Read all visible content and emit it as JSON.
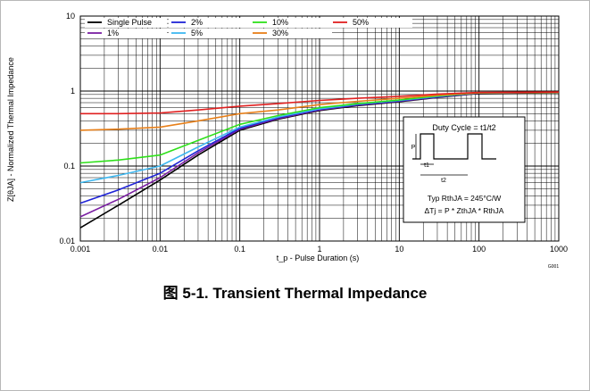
{
  "figure_caption": "图 5-1. Transient Thermal Impedance",
  "figure_id": "G001",
  "chart_data": {
    "type": "line",
    "title": "",
    "xlabel": "t_p - Pulse Duration (s)",
    "ylabel": "Z[θJA] - Normalized Thermal Impedance",
    "x_scale": "log",
    "y_scale": "log",
    "xlim": [
      0.001,
      1000
    ],
    "ylim": [
      0.01,
      10
    ],
    "x_ticks": [
      "0.001",
      "0.01",
      "0.1",
      "1",
      "10",
      "100",
      "1000"
    ],
    "y_ticks": [
      "0.01",
      "0.1",
      "1",
      "10"
    ],
    "grid": true,
    "legend_position": "top",
    "series": [
      {
        "name": "Single Pulse",
        "color": "#000000",
        "x": [
          0.001,
          0.003,
          0.01,
          0.03,
          0.1,
          0.3,
          1,
          3,
          10,
          30,
          100,
          1000
        ],
        "y": [
          0.015,
          0.03,
          0.065,
          0.14,
          0.3,
          0.42,
          0.55,
          0.64,
          0.72,
          0.82,
          0.93,
          0.95
        ]
      },
      {
        "name": "1%",
        "color": "#7a1fa2",
        "x": [
          0.001,
          0.003,
          0.01,
          0.03,
          0.1,
          0.3,
          1,
          3,
          10,
          30,
          100,
          1000
        ],
        "y": [
          0.021,
          0.036,
          0.07,
          0.15,
          0.31,
          0.43,
          0.56,
          0.65,
          0.73,
          0.83,
          0.94,
          0.96
        ]
      },
      {
        "name": "2%",
        "color": "#1f24d6",
        "x": [
          0.001,
          0.003,
          0.01,
          0.03,
          0.1,
          0.3,
          1,
          3,
          10,
          30,
          100,
          1000
        ],
        "y": [
          0.032,
          0.048,
          0.08,
          0.16,
          0.32,
          0.44,
          0.57,
          0.66,
          0.74,
          0.84,
          0.95,
          0.96
        ]
      },
      {
        "name": "5%",
        "color": "#3fb8f0",
        "x": [
          0.001,
          0.003,
          0.01,
          0.03,
          0.1,
          0.3,
          1,
          3,
          10,
          30,
          100,
          1000
        ],
        "y": [
          0.06,
          0.075,
          0.1,
          0.18,
          0.33,
          0.45,
          0.58,
          0.67,
          0.75,
          0.85,
          0.95,
          0.96
        ]
      },
      {
        "name": "10%",
        "color": "#2ee01a",
        "x": [
          0.001,
          0.003,
          0.01,
          0.03,
          0.1,
          0.3,
          1,
          3,
          10,
          30,
          100,
          1000
        ],
        "y": [
          0.11,
          0.12,
          0.14,
          0.22,
          0.36,
          0.47,
          0.6,
          0.68,
          0.76,
          0.86,
          0.95,
          0.96
        ]
      },
      {
        "name": "30%",
        "color": "#e8801a",
        "x": [
          0.001,
          0.003,
          0.01,
          0.03,
          0.1,
          0.3,
          1,
          3,
          10,
          30,
          100,
          1000
        ],
        "y": [
          0.3,
          0.31,
          0.33,
          0.4,
          0.5,
          0.56,
          0.66,
          0.73,
          0.8,
          0.88,
          0.95,
          0.96
        ]
      },
      {
        "name": "50%",
        "color": "#e02020",
        "x": [
          0.001,
          0.003,
          0.01,
          0.03,
          0.1,
          0.3,
          1,
          3,
          10,
          30,
          100,
          1000
        ],
        "y": [
          0.5,
          0.5,
          0.51,
          0.56,
          0.63,
          0.68,
          0.75,
          0.8,
          0.85,
          0.91,
          0.96,
          0.97
        ]
      }
    ],
    "inset": {
      "title": "Duty Cycle = t1/t2",
      "pulse_label": "P",
      "t1_label": "t1",
      "t2_label": "t2",
      "rth_text": "Typ RthJA = 245°C/W",
      "formula_text": "ΔTj = P * ZthJA * RthJA"
    }
  }
}
